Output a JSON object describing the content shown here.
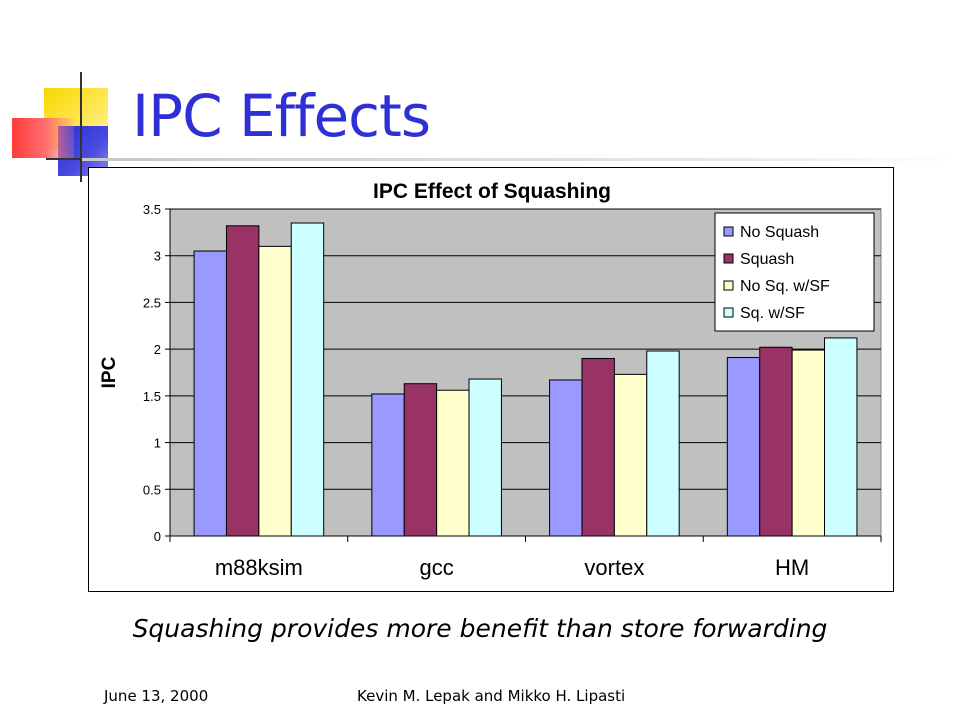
{
  "slide": {
    "title": "IPC Effects",
    "caption": "Squashing provides more benefit than store forwarding",
    "footer_date": "June 13, 2000",
    "footer_authors": "Kevin M. Lepak and Mikko H. Lipasti"
  },
  "chart_data": {
    "type": "bar",
    "title": "IPC Effect of Squashing",
    "xlabel": "",
    "ylabel": "IPC",
    "categories": [
      "m88ksim",
      "gcc",
      "vortex",
      "HM"
    ],
    "ylim": [
      0,
      3.5
    ],
    "yticks": [
      "3.5",
      "3",
      "2.5",
      "2",
      "1.5",
      "1",
      "0.5",
      "0"
    ],
    "grid": true,
    "legend_position": "top-right",
    "plot_background": "#c0c0c0",
    "series": [
      {
        "name": "No Squash",
        "color": "#9999ff",
        "values": [
          3.05,
          1.52,
          1.67,
          1.91
        ]
      },
      {
        "name": "Squash",
        "color": "#993366",
        "values": [
          3.32,
          1.63,
          1.9,
          2.02
        ]
      },
      {
        "name": "No Sq. w/SF",
        "color": "#ffffcc",
        "values": [
          3.1,
          1.56,
          1.73,
          1.99
        ]
      },
      {
        "name": "Sq. w/SF",
        "color": "#ccffff",
        "values": [
          3.35,
          1.68,
          1.98,
          2.12
        ]
      }
    ]
  }
}
